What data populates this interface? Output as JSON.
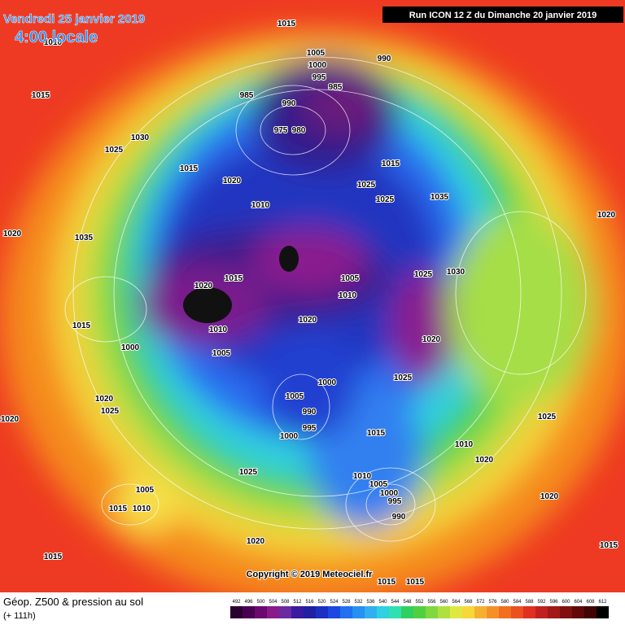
{
  "header": {
    "date": "Vendredi 25 janvier 2019",
    "time": "4:00 locale",
    "run": "Run ICON 12 Z du Dimanche 20 janvier 2019"
  },
  "footer": {
    "title": "Géop. Z500 & pression au sol",
    "lead": "(+ 111h)",
    "copyright": "Copyright © 2019 Meteociel.fr",
    "scale": [
      492,
      496,
      500,
      504,
      508,
      512,
      516,
      520,
      524,
      528,
      532,
      536,
      540,
      544,
      548,
      552,
      556,
      560,
      564,
      568,
      572,
      576,
      580,
      584,
      588,
      592,
      596,
      600,
      604,
      608,
      612
    ]
  },
  "map": {
    "isobar_labels": [
      1015,
      1010,
      1015,
      1030,
      1025,
      1015,
      1020,
      1010,
      1020,
      1035,
      1005,
      1000,
      995,
      990,
      985,
      985,
      990,
      975,
      980,
      1015,
      1025,
      1025,
      1035,
      1020,
      1015,
      1005,
      1010,
      1025,
      1030,
      1020,
      1010,
      1005,
      1000,
      1015,
      1000,
      1005,
      990,
      995,
      1000,
      1015,
      1020,
      1025,
      1020,
      1025,
      1020,
      1005,
      1015,
      1010,
      1025,
      1020,
      1015,
      1010,
      1005,
      1000,
      995,
      990,
      1020,
      1020,
      1025,
      1010,
      1020,
      1015,
      1015,
      1015
    ]
  }
}
